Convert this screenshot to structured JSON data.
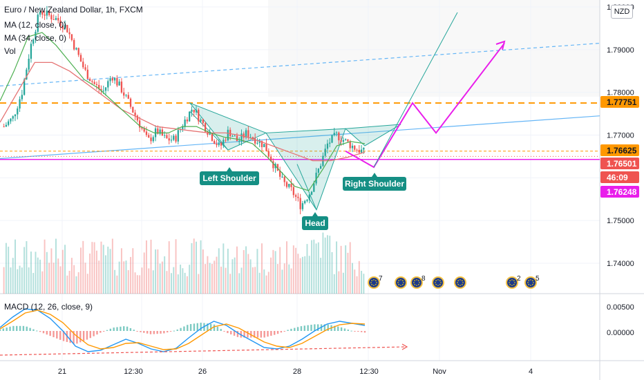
{
  "header": {
    "symbol_title": "Euro / New Zealand Dollar, 1h, FXCM",
    "ma12_label": "MA (12, close, 0)",
    "ma34_label": "MA (34, close, 0)",
    "vol_label": "Vol",
    "macd_label": "MACD (12, 26, close, 9)",
    "currency_badge": "NZD"
  },
  "colors": {
    "up": "#26a69a",
    "down": "#ef5350",
    "ma12": "#4caf50",
    "ma34": "#e57373",
    "orange": "#ff9800",
    "magenta": "#e91eeb",
    "blue_line": "#64b5f6",
    "teal_pattern": "#26a69a",
    "macd_line": "#2196f3",
    "signal_line": "#ff9800"
  },
  "price_axis": {
    "ticks": [
      "1.80000",
      "1.79000",
      "1.78000",
      "1.77000",
      "1.76000",
      "1.75000",
      "1.74000"
    ],
    "labels": [
      {
        "text": "1.77751",
        "color": "#ff9800",
        "text_color": "#131722"
      },
      {
        "text": "1.76625",
        "color": "#ff9800",
        "text_color": "#131722"
      },
      {
        "text": "1.76501",
        "color": "#ef5350",
        "text_color": "#ffffff"
      },
      {
        "text": "46:09",
        "color": "#ef5350",
        "text_color": "#ffffff"
      },
      {
        "text": "1.76248",
        "color": "#e91eeb",
        "text_color": "#ffffff"
      }
    ]
  },
  "macd_axis": {
    "ticks": [
      "0.00500",
      "0.00000"
    ]
  },
  "time_axis": {
    "ticks": [
      "21",
      "12:30",
      "26",
      "28",
      "12:30",
      "Nov",
      "4"
    ]
  },
  "annotations": {
    "left_shoulder": "Left Shoulder",
    "head": "Head",
    "right_shoulder": "Right Shoulder"
  },
  "events": [
    {
      "icon": "flag-eu-icon",
      "badge": "7"
    },
    {
      "icon": "flag-eu-icon",
      "badge": ""
    },
    {
      "icon": "flag-eu-icon",
      "badge": "8"
    },
    {
      "icon": "flag-eu-icon",
      "badge": ""
    },
    {
      "icon": "flag-eu-icon",
      "badge": ""
    },
    {
      "icon": "flag-eu-icon",
      "badge": "2"
    },
    {
      "icon": "flag-eu-icon",
      "badge": "5"
    }
  ],
  "chart_data": {
    "type": "candlestick",
    "pair": "EUR/NZD",
    "timeframe": "1h",
    "y_range": [
      1.733,
      1.8
    ],
    "key_levels": {
      "resistance_1": 1.77751,
      "resistance_2": 1.76625,
      "last_price": 1.76501,
      "projection_low": 1.76248
    },
    "close_path": [
      1.772,
      1.774,
      1.78,
      1.791,
      1.799,
      1.798,
      1.797,
      1.795,
      1.79,
      1.785,
      1.782,
      1.78,
      1.784,
      1.781,
      1.777,
      1.773,
      1.7685,
      1.771,
      1.769,
      1.769,
      1.773,
      1.7765,
      1.773,
      1.77,
      1.767,
      1.771,
      1.7685,
      1.7705,
      1.769,
      1.7675,
      1.763,
      1.759,
      1.757,
      1.7535,
      1.7565,
      1.762,
      1.768,
      1.77,
      1.7685,
      1.767,
      1.766
    ],
    "projection": [
      1.76625,
      1.76248,
      1.77751,
      1.7705,
      1.7915
    ],
    "ma12": [
      1.778,
      1.785,
      1.793,
      1.794,
      1.791,
      1.787,
      1.783,
      1.781,
      1.778,
      1.775,
      1.772,
      1.7705,
      1.7705,
      1.772,
      1.772,
      1.7705,
      1.7695,
      1.769,
      1.768,
      1.765,
      1.7615,
      1.758,
      1.757,
      1.762,
      1.7675,
      1.7685,
      1.768
    ],
    "ma34": [
      1.773,
      1.78,
      1.787,
      1.787,
      1.785,
      1.782,
      1.779,
      1.776,
      1.774,
      1.772,
      1.7715,
      1.771,
      1.7705,
      1.7705,
      1.7698,
      1.7685,
      1.767,
      1.7655,
      1.764,
      1.764,
      1.7648,
      1.766
    ]
  }
}
